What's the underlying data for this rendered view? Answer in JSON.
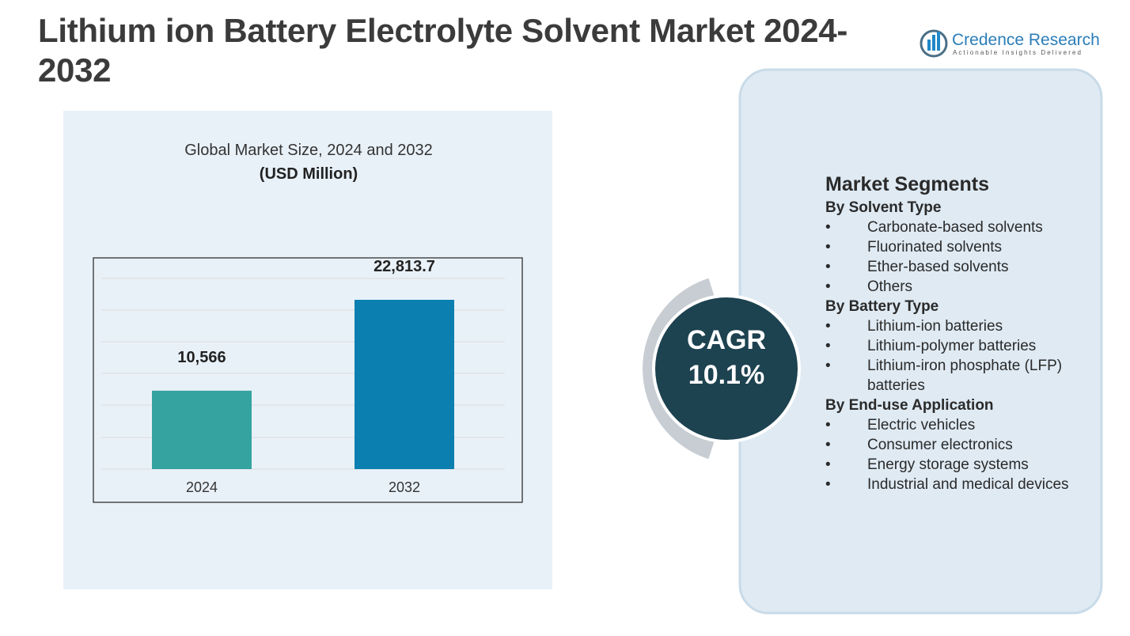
{
  "header": {
    "title": "Lithium ion Battery Electrolyte Solvent Market 2024-2032"
  },
  "brand": {
    "name": "Credence Research",
    "tagline": "Actionable Insights Delivered"
  },
  "chart_data": {
    "type": "bar",
    "title": "Global Market Size, 2024 and 2032",
    "subtitle": "(USD Million)",
    "categories": [
      "2024",
      "2032"
    ],
    "values": [
      10566,
      22813.7
    ],
    "value_labels": [
      "10,566",
      "22,813.7"
    ],
    "colors": [
      "#35a3a0",
      "#0a7fb0"
    ],
    "grid": true
  },
  "cagr": {
    "label": "CAGR",
    "value": "10.1%"
  },
  "segments": {
    "title": "Market Segments",
    "groups": [
      {
        "name": "By Solvent Type",
        "items": [
          "Carbonate-based solvents",
          "Fluorinated solvents",
          "Ether-based solvents",
          "Others"
        ]
      },
      {
        "name": "By Battery Type",
        "items": [
          "Lithium-ion batteries",
          "Lithium-polymer batteries",
          "Lithium-iron phosphate (LFP) batteries"
        ]
      },
      {
        "name": "By End-use Application",
        "items": [
          "Electric vehicles",
          "Consumer electronics",
          "Energy storage systems",
          "Industrial and medical devices"
        ]
      }
    ]
  }
}
